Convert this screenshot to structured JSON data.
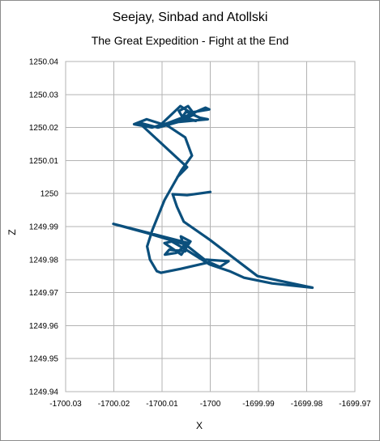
{
  "chart_data": {
    "type": "line",
    "title": "Seejay, Sinbad and Atollski",
    "subtitle": "The Great Expedition - Fight at the End",
    "xlabel": "X",
    "ylabel": "Z",
    "xlim": [
      -1700.03,
      -1699.97
    ],
    "ylim": [
      1249.94,
      1250.04
    ],
    "x_ticks": [
      "-1700.03",
      "-1700.02",
      "-1700.01",
      "-1700",
      "-1699.99",
      "-1699.98",
      "-1699.97"
    ],
    "y_ticks": [
      "1249.94",
      "1249.95",
      "1249.96",
      "1249.97",
      "1249.98",
      "1249.99",
      "1250",
      "1250.01",
      "1250.02",
      "1250.03",
      "1250.04"
    ],
    "grid": true,
    "legend": "none",
    "color": "#0b4f7c",
    "series": [
      {
        "x": [
          -1700.0,
          -1700.0048,
          -1700.0078,
          -1700.0069,
          -1700.0055,
          -1700.0001,
          -1699.9902,
          -1699.9788,
          -1699.9872,
          -1699.993,
          -1699.996,
          -1700.0001,
          -1700.005,
          -1700.008,
          -1700.0095,
          -1700.006,
          -1700.0041,
          -1700.0061,
          -1700.0052,
          -1700.0085,
          -1700.0094,
          -1700.0071,
          -1700.0045,
          -1700.0201,
          -1700.013,
          -1700.0051,
          -1700.0012,
          -1699.9962,
          -1699.998,
          -1700.0002,
          -1700.0061,
          -1700.0102,
          -1700.0111,
          -1700.0125,
          -1700.0131,
          -1700.012,
          -1700.0095,
          -1700.006,
          -1700.0038,
          -1700.0052,
          -1700.0088,
          -1700.0132,
          -1700.0158,
          -1700.0121,
          -1700.0084,
          -1700.0051,
          -1700.003,
          -1700.0062,
          -1700.0091,
          -1700.0108,
          -1700.0064,
          -1700.0033,
          -1700.0046,
          -1700.0065,
          -1700.0058,
          -1700.005,
          -1700.0022,
          -1700.0005,
          -1700.0081,
          -1700.001,
          -1700.0002,
          -1700.0041,
          -1700.0062,
          -1700.0109,
          -1700.0148,
          -1700.0048,
          -1700.0068
        ],
        "y": [
          1250.0005,
          1249.9995,
          1249.9998,
          1249.996,
          1249.9915,
          1249.986,
          1249.975,
          1249.9715,
          1249.9728,
          1249.9745,
          1249.9765,
          1249.9785,
          1249.983,
          1249.9855,
          1249.985,
          1249.9815,
          1249.9855,
          1249.987,
          1249.9825,
          1249.983,
          1249.9815,
          1249.982,
          1249.985,
          1249.9908,
          1249.988,
          1249.9845,
          1249.98,
          1249.9795,
          1249.9778,
          1249.9792,
          1249.9772,
          1249.976,
          1249.9765,
          1249.98,
          1249.984,
          1249.989,
          1249.998,
          1250.007,
          1250.0115,
          1250.017,
          1250.0205,
          1250.0225,
          1250.021,
          1250.02,
          1250.0215,
          1250.023,
          1250.022,
          1250.0228,
          1250.0212,
          1250.02,
          1250.0218,
          1250.024,
          1250.0265,
          1250.025,
          1250.0232,
          1250.0248,
          1250.023,
          1250.0225,
          1250.0215,
          1250.026,
          1250.0255,
          1250.0245,
          1250.0265,
          1250.02,
          1250.0215,
          1250.008,
          1250.005
        ]
      }
    ]
  }
}
